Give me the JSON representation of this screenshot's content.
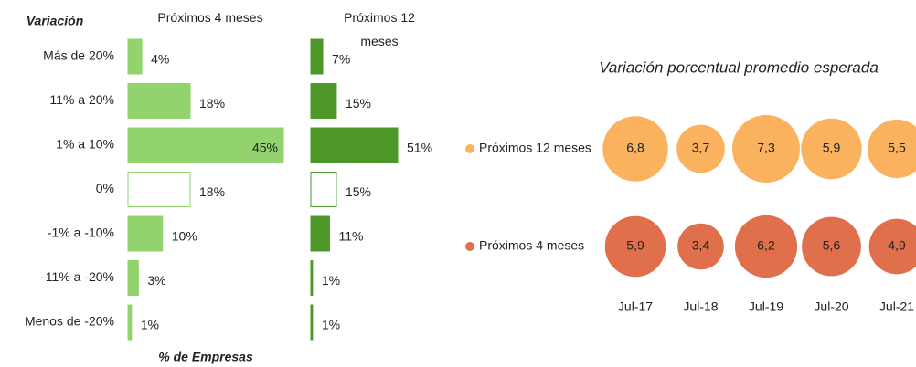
{
  "chart_data": [
    {
      "type": "hbar-panels",
      "y_label": "Variación",
      "x_label": "% de Empresas",
      "categories": [
        "Más de 20%",
        "11% a 20%",
        "1% a 10%",
        "0%",
        "-1% a -10%",
        "-11% a -20%",
        "Menos de -20%"
      ],
      "series": [
        {
          "name": "Próximos 4 meses",
          "color": "#92d36e",
          "point_colors": [
            "#92d36e",
            "#92d36e",
            "#92d36e",
            "#ffffff",
            "#92d36e",
            "#92d36e",
            "#92d36e"
          ],
          "values": [
            4,
            18,
            45,
            18,
            10,
            3,
            1
          ],
          "value_labels": [
            "4%",
            "18%",
            "45%",
            "18%",
            "10%",
            "3%",
            "1%"
          ]
        },
        {
          "name": "Próximos 12 meses",
          "color": "#4e982a",
          "point_colors": [
            "#4e982a",
            "#4e982a",
            "#4e982a",
            "#ffffff",
            "#4e982a",
            "#4e982a",
            "#4e982a"
          ],
          "values": [
            7,
            15,
            51,
            15,
            11,
            1,
            1
          ],
          "value_labels": [
            "7%",
            "15%",
            "51%",
            "15%",
            "11%",
            "1%",
            "1%"
          ]
        }
      ]
    },
    {
      "type": "bubble",
      "title": "Variación porcentual promedio esperada",
      "categories": [
        "Jul-17",
        "Jul-18",
        "Jul-19",
        "Jul-20",
        "Jul-21"
      ],
      "series": [
        {
          "name": "Próximos 12 meses",
          "color": "#fbb25e",
          "values": [
            6.8,
            3.7,
            7.3,
            5.9,
            5.5
          ],
          "value_labels": [
            "6,8",
            "3,7",
            "7,3",
            "5,9",
            "5,5"
          ]
        },
        {
          "name": "Próximos 4 meses",
          "color": "#e0704b",
          "values": [
            5.9,
            3.4,
            6.2,
            5.6,
            4.9
          ],
          "value_labels": [
            "5,9",
            "3,4",
            "6,2",
            "5,6",
            "4,9"
          ]
        }
      ]
    }
  ]
}
